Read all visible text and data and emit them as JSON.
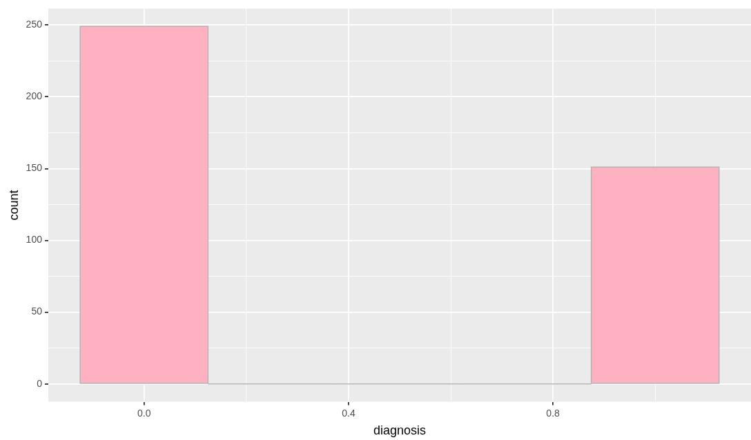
{
  "chart_data": {
    "type": "histogram",
    "xlabel": "diagnosis",
    "ylabel": "count",
    "bins": [
      -0.125,
      0.125,
      0.375,
      0.625,
      0.875,
      1.125
    ],
    "values": [
      249,
      0,
      0,
      0,
      151
    ],
    "color": "#ffb0c1",
    "xlim": [
      -0.1875,
      1.1875
    ],
    "xticks": [
      {
        "value": 0,
        "label": "0.0"
      },
      {
        "value": 0.2,
        "label": null
      },
      {
        "value": 0.4,
        "label": "0.4"
      },
      {
        "value": 0.6,
        "label": null
      },
      {
        "value": 0.8,
        "label": "0.8"
      },
      {
        "value": 1,
        "label": null
      }
    ],
    "ylim": [
      -12.45,
      261.45
    ],
    "yticks": [
      0,
      {
        "value": 25,
        "label": null
      },
      50,
      {
        "value": 75,
        "label": null
      },
      100,
      {
        "value": 125,
        "label": null
      },
      150,
      {
        "value": 175,
        "label": null
      },
      200,
      {
        "value": 225,
        "label": null
      },
      250
    ],
    "grid": true,
    "legend": false
  }
}
